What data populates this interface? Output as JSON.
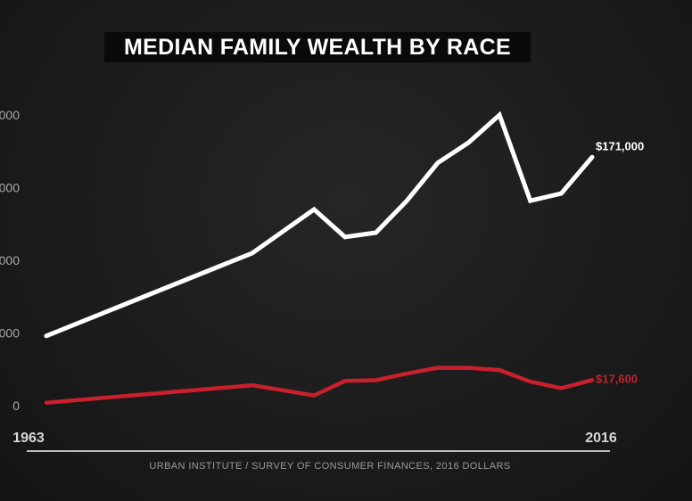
{
  "chart_data": {
    "type": "line",
    "title": "MEDIAN FAMILY WEALTH BY RACE",
    "source": "URBAN INSTITUTE / SURVEY OF CONSUMER FINANCES, 2016 DOLLARS",
    "x_tick_labels": [
      "1963",
      "2016"
    ],
    "y_tick_labels": [
      "0",
      "000",
      "000",
      "000",
      "000"
    ],
    "y_tick_values": [
      0,
      50000,
      100000,
      150000,
      200000
    ],
    "ylim": [
      0,
      200000
    ],
    "xlim": [
      1963,
      2016
    ],
    "grid": false,
    "series": [
      {
        "color": "#ffffff",
        "end_label": "$171,000",
        "x": [
          1963,
          1983,
          1989,
          1992,
          1995,
          1998,
          2001,
          2004,
          2007,
          2010,
          2013,
          2016
        ],
        "values": [
          48000,
          105000,
          135000,
          116000,
          119000,
          141000,
          167000,
          181000,
          200000,
          141000,
          146000,
          171000
        ]
      },
      {
        "color": "#c8202c",
        "end_label": "$17,600",
        "x": [
          1963,
          1983,
          1989,
          1992,
          1995,
          1998,
          2001,
          2004,
          2007,
          2010,
          2013,
          2016
        ],
        "values": [
          2000,
          14000,
          7000,
          17000,
          17500,
          22000,
          26000,
          26000,
          24500,
          16500,
          12000,
          17600
        ]
      }
    ]
  }
}
